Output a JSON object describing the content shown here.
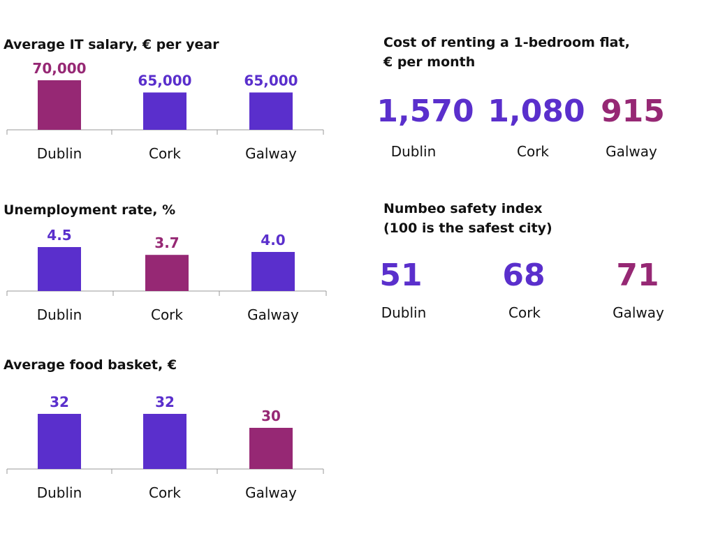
{
  "colors": {
    "purple": "#5a2fcc",
    "magenta": "#962874",
    "axis": "#999999",
    "text": "#111111"
  },
  "chart_data": [
    {
      "type": "bar",
      "title": "Average IT salary, € per year",
      "categories": [
        "Dublin",
        "Cork",
        "Galway"
      ],
      "values": [
        70000,
        65000,
        65000
      ],
      "value_labels": [
        "70,000",
        "65,000",
        "65,000"
      ],
      "highlight": [
        true,
        false,
        false
      ],
      "ylim": [
        60000,
        70000
      ]
    },
    {
      "type": "bar",
      "title": "Unemployment rate, %",
      "categories": [
        "Dublin",
        "Cork",
        "Galway"
      ],
      "values": [
        4.5,
        3.7,
        4.0
      ],
      "value_labels": [
        "4.5",
        "3.7",
        "4.0"
      ],
      "highlight": [
        false,
        true,
        false
      ],
      "ylim": [
        0,
        4.5
      ]
    },
    {
      "type": "bar",
      "title": "Average food basket, €",
      "categories": [
        "Dublin",
        "Cork",
        "Galway"
      ],
      "values": [
        32,
        32,
        30
      ],
      "value_labels": [
        "32",
        "32",
        "30"
      ],
      "highlight": [
        false,
        false,
        true
      ],
      "ylim": [
        28,
        32
      ]
    },
    {
      "type": "table",
      "title": [
        "Cost of renting a 1-bedroom flat,",
        "€ per month"
      ],
      "categories": [
        "Dublin",
        "Cork",
        "Galway"
      ],
      "values": [
        1570,
        1080,
        915
      ],
      "value_labels": [
        "1,570",
        "1,080",
        "915"
      ],
      "highlight": [
        false,
        false,
        true
      ]
    },
    {
      "type": "table",
      "title": [
        "Numbeo safety index",
        "(100 is the safest city)"
      ],
      "categories": [
        "Dublin",
        "Cork",
        "Galway"
      ],
      "values": [
        51,
        68,
        71
      ],
      "value_labels": [
        "51",
        "68",
        "71"
      ],
      "highlight": [
        false,
        false,
        true
      ]
    }
  ]
}
